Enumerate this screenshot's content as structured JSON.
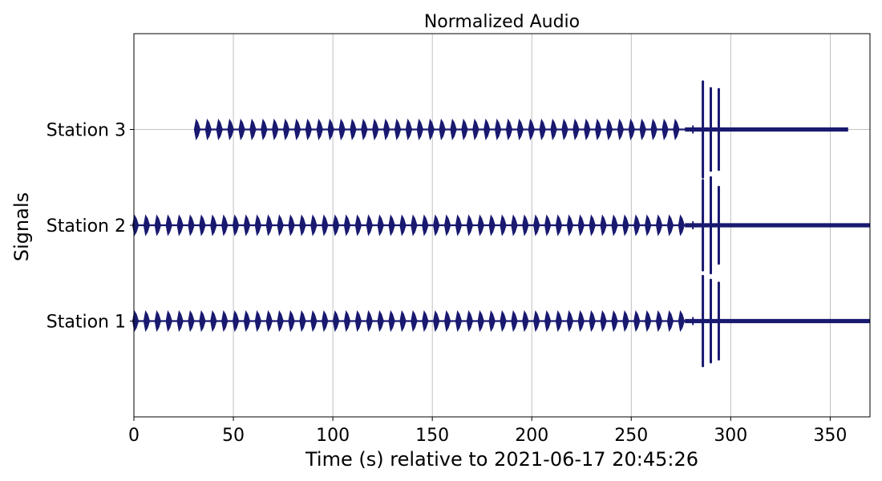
{
  "chart_data": {
    "type": "line",
    "title": "Normalized Audio",
    "xlabel": "Time (s) relative to 2021-06-17 20:45:26",
    "ylabel": "Signals",
    "xlim": [
      0,
      370
    ],
    "ylim": [
      0,
      4
    ],
    "grid": true,
    "line_color": "#191970",
    "x_ticks": [
      0,
      50,
      100,
      150,
      200,
      250,
      300,
      350
    ],
    "series": [
      {
        "name": "Station 1",
        "baseline": 1,
        "start": 0,
        "end": 370,
        "burst_period": 5.6,
        "burst_amplitude": 0.1,
        "burst_end": 276,
        "impulses": [
          {
            "x": 286,
            "amplitude": 0.47
          },
          {
            "x": 290,
            "amplitude": 0.43
          },
          {
            "x": 294,
            "amplitude": 0.4
          }
        ],
        "tail_amplitude": 0.015
      },
      {
        "name": "Station 2",
        "baseline": 2,
        "start": 0,
        "end": 370,
        "burst_period": 5.6,
        "burst_amplitude": 0.1,
        "burst_end": 276,
        "impulses": [
          {
            "x": 286,
            "amplitude": 0.47
          },
          {
            "x": 290,
            "amplitude": 0.5
          },
          {
            "x": 294,
            "amplitude": 0.4
          }
        ],
        "tail_amplitude": 0.015
      },
      {
        "name": "Station 3",
        "baseline": 3,
        "start": 31,
        "end": 359,
        "burst_period": 5.6,
        "burst_amplitude": 0.1,
        "burst_end": 276,
        "impulses": [
          {
            "x": 286,
            "amplitude": 0.5
          },
          {
            "x": 290,
            "amplitude": 0.43
          },
          {
            "x": 294,
            "amplitude": 0.42
          }
        ],
        "tail_amplitude": 0.015
      }
    ]
  }
}
